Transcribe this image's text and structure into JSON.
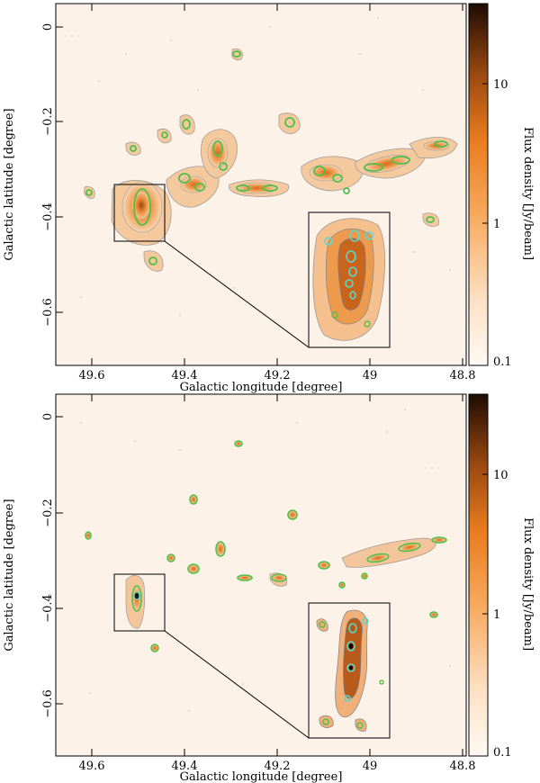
{
  "figure": {
    "panels": [
      {
        "id": "top",
        "x_axis": {
          "title": "Galactic longitude [degree]",
          "ticks": [
            "49.6",
            "49.4",
            "49.2",
            "49",
            "48.8"
          ]
        },
        "y_axis": {
          "title": "Galactic latitude [degree]",
          "ticks": [
            "0",
            "−0.2",
            "−0.4",
            "−0.6"
          ]
        },
        "colorbar": {
          "title": "Flux density [Jy/beam]",
          "ticks": [
            "10",
            "1",
            "0.1"
          ],
          "scale": "log"
        }
      },
      {
        "id": "bottom",
        "x_axis": {
          "title": "Galactic longitude [degree]",
          "ticks": [
            "49.6",
            "49.4",
            "49.2",
            "49",
            "48.8"
          ]
        },
        "y_axis": {
          "title": "Galactic latitude [degree]",
          "ticks": [
            "0",
            "−0.2",
            "−0.4",
            "−0.6"
          ]
        },
        "colorbar": {
          "title": "Flux density [Jy/beam]",
          "ticks": [
            "10",
            "1",
            "0.1"
          ],
          "scale": "log"
        }
      }
    ],
    "colors": {
      "background_map": "#fdf1e6",
      "low_emission": "#f6c9a0",
      "mid_emission": "#ef8a2a",
      "high_emission": "#8a3e10",
      "contour_grey": "#8c8c8c",
      "contour_green": "#4fc04a",
      "contour_cyan": "#5ad8c8"
    }
  }
}
